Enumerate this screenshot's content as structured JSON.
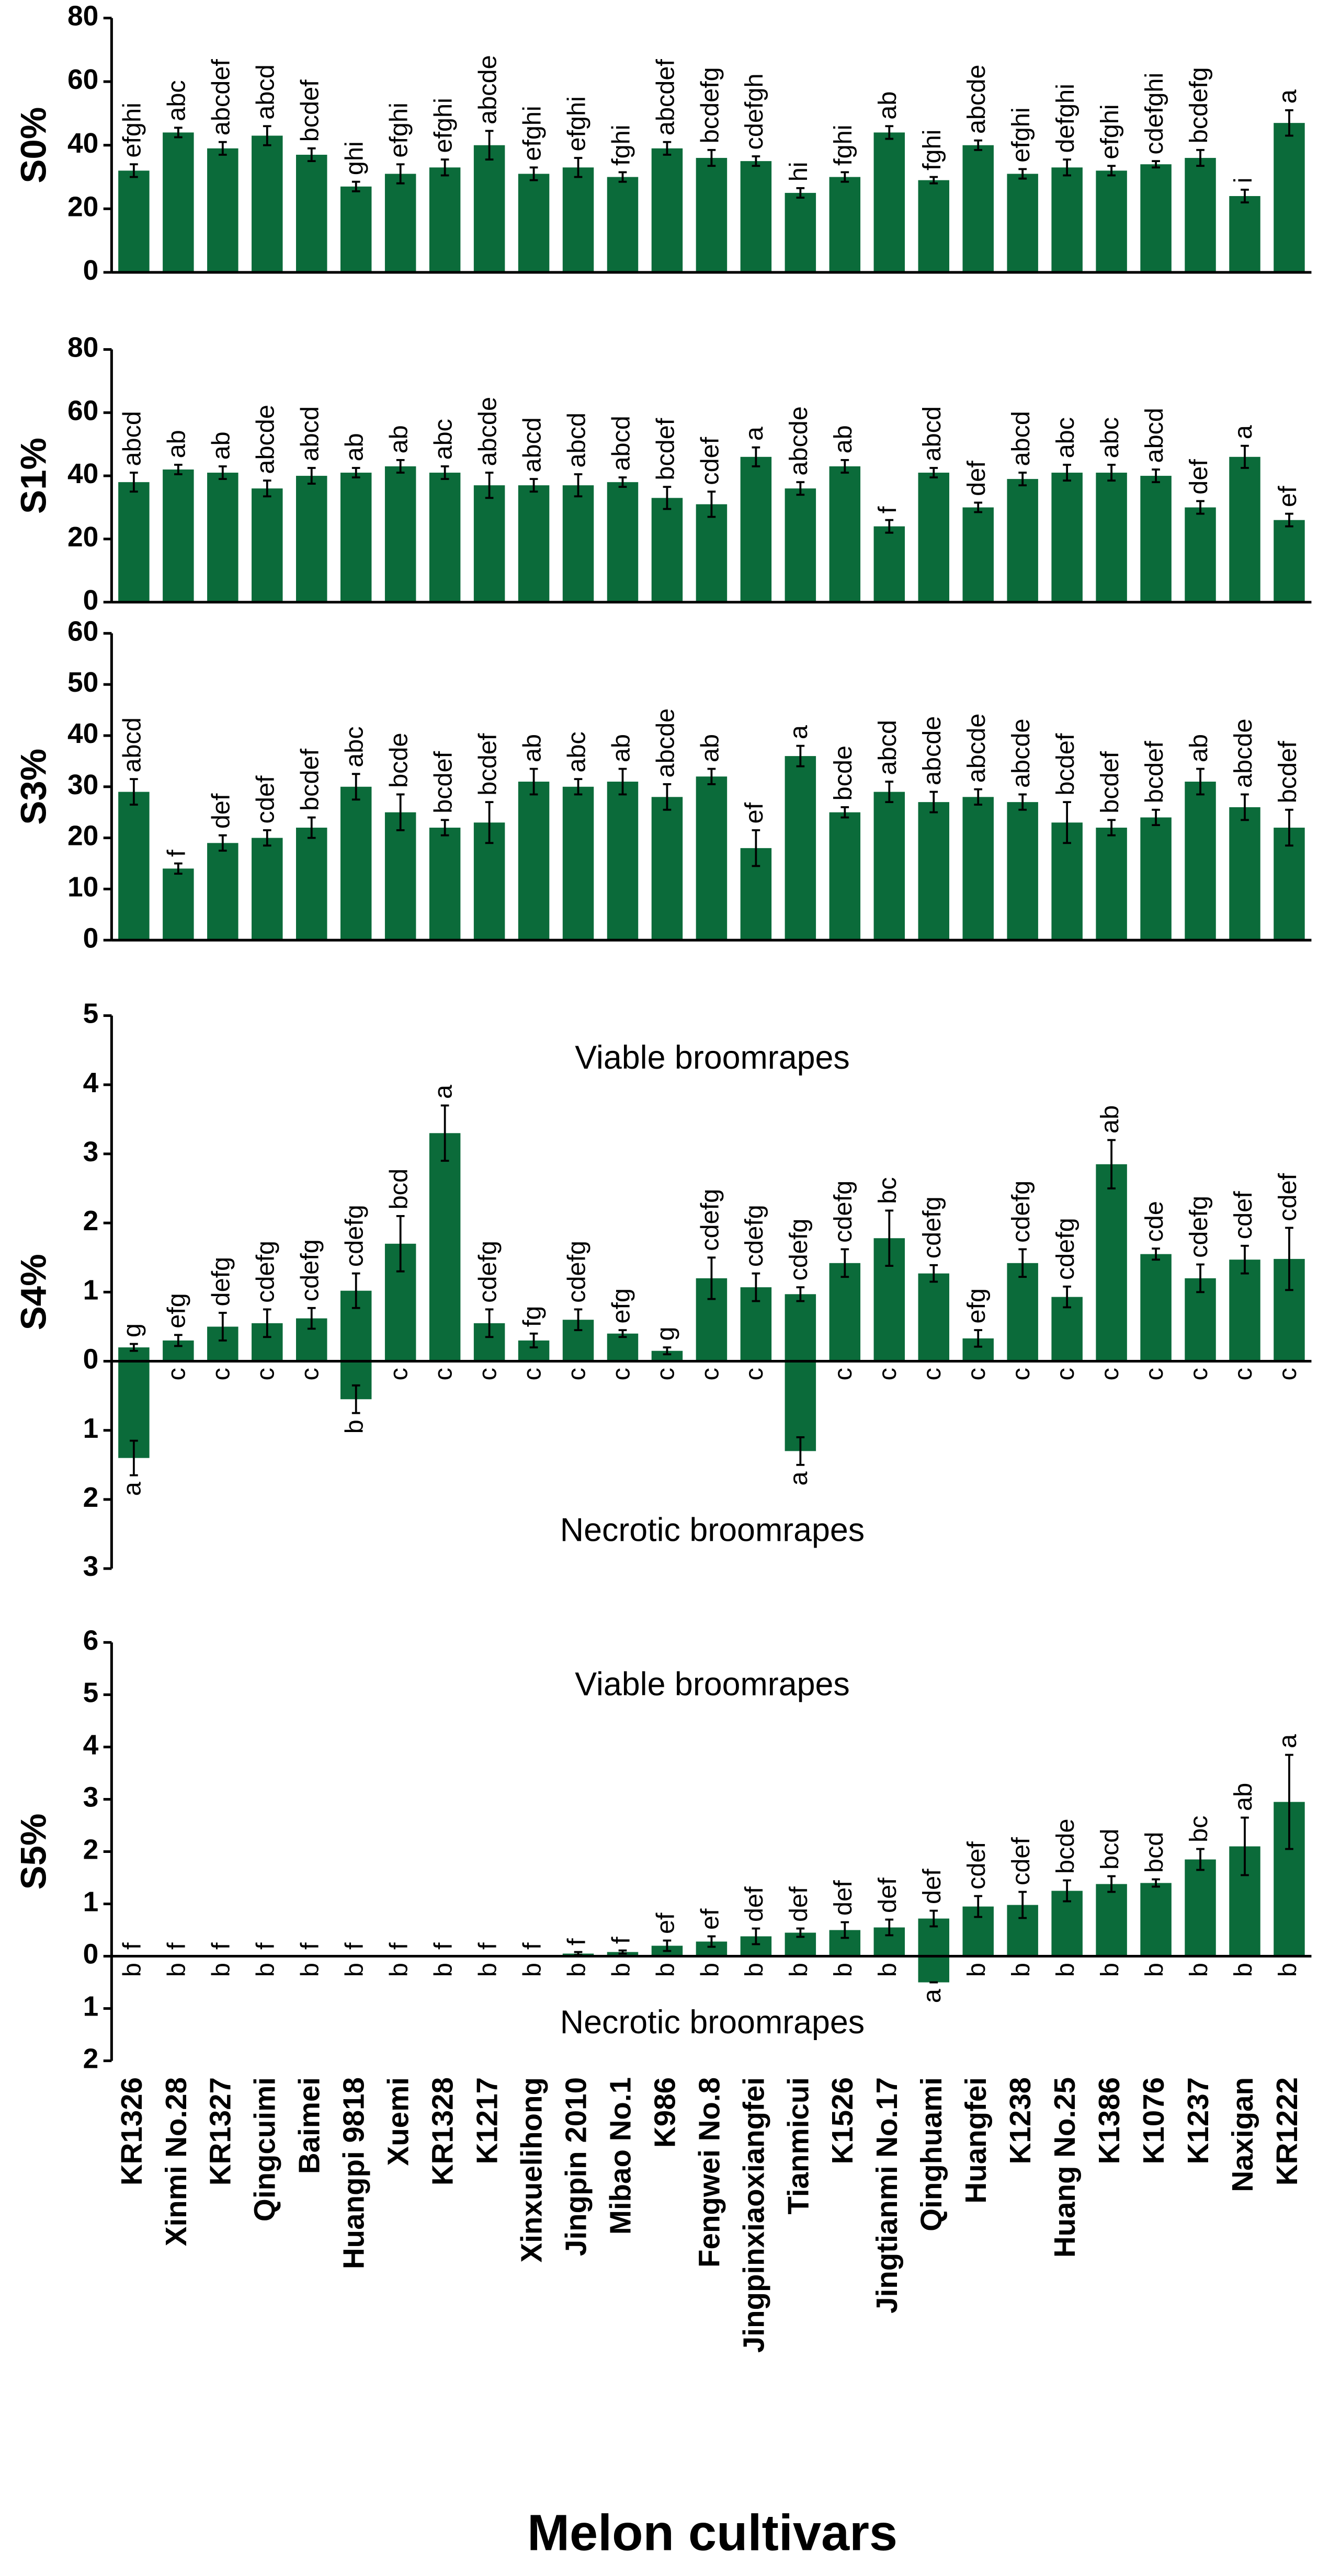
{
  "chart_data": [
    {
      "type": "bar",
      "ylabel": "S0%",
      "ylim": [
        0,
        80
      ],
      "yticks": [
        0,
        20,
        40,
        60,
        80
      ],
      "color": "#0b6b3a",
      "values": [
        32,
        44,
        39,
        43,
        37,
        27,
        31,
        33,
        40,
        31,
        33,
        30,
        39,
        36,
        35,
        25,
        30,
        44,
        29,
        40,
        31,
        33,
        32,
        34,
        36,
        24,
        47
      ],
      "errors": [
        2,
        1.5,
        2,
        3,
        2,
        1.5,
        3,
        2.5,
        4.5,
        2,
        3,
        1.5,
        2,
        2.5,
        1.5,
        1.5,
        1.5,
        2,
        1,
        1.5,
        1.5,
        2.5,
        1.5,
        1,
        2.5,
        2,
        4
      ],
      "letters": [
        "efghi",
        "abc",
        "abcdef",
        "abcd",
        "bcdef",
        "ghi",
        "efghi",
        "efghi",
        "abcde",
        "efghi",
        "efghi",
        "fghi",
        "abcdef",
        "bcdefg",
        "cdefgh",
        "hi",
        "fghi",
        "ab",
        "fghi",
        "abcde",
        "efghi",
        "defghi",
        "efghi",
        "cdefghi",
        "bcdefg",
        "i",
        "a"
      ]
    },
    {
      "type": "bar",
      "ylabel": "S1%",
      "ylim": [
        0,
        80
      ],
      "yticks": [
        0,
        20,
        40,
        60,
        80
      ],
      "color": "#0b6b3a",
      "values": [
        38,
        42,
        41,
        36,
        40,
        41,
        43,
        41,
        37,
        37,
        37,
        38,
        33,
        31,
        46,
        36,
        43,
        24,
        41,
        30,
        39,
        41,
        41,
        40,
        30,
        46,
        26
      ],
      "errors": [
        3,
        1.5,
        2,
        2.5,
        2.5,
        1.5,
        2,
        2,
        4,
        2,
        3.5,
        1.5,
        3.5,
        4,
        3,
        2,
        2,
        2,
        1.5,
        1.5,
        2,
        2.5,
        2.5,
        2,
        2,
        3.5,
        2
      ],
      "letters": [
        "abcd",
        "ab",
        "ab",
        "abcde",
        "abcd",
        "ab",
        "ab",
        "abc",
        "abcde",
        "abcd",
        "abcd",
        "abcd",
        "bcdef",
        "cdef",
        "a",
        "abcde",
        "ab",
        "f",
        "abcd",
        "def",
        "abcd",
        "abc",
        "abc",
        "abcd",
        "def",
        "a",
        "ef"
      ]
    },
    {
      "type": "bar",
      "ylabel": "S3%",
      "ylim": [
        0,
        60
      ],
      "yticks": [
        0,
        10,
        20,
        30,
        40,
        50,
        60
      ],
      "color": "#0b6b3a",
      "values": [
        29,
        14,
        19,
        20,
        22,
        30,
        25,
        22,
        23,
        31,
        30,
        31,
        28,
        32,
        18,
        36,
        25,
        29,
        27,
        28,
        27,
        23,
        22,
        24,
        31,
        26,
        22
      ],
      "errors": [
        2.5,
        1,
        1.5,
        1.5,
        2,
        2.5,
        3.5,
        1.5,
        4,
        2.5,
        1.5,
        2.5,
        2.5,
        1.5,
        3.5,
        2,
        1,
        2,
        2,
        1.5,
        1.5,
        4,
        1.5,
        1.5,
        2.5,
        2.5,
        3.5
      ],
      "letters": [
        "abcd",
        "f",
        "def",
        "cdef",
        "bcdef",
        "abc",
        "bcde",
        "bcdef",
        "bcdef",
        "ab",
        "abc",
        "ab",
        "abcde",
        "ab",
        "ef",
        "a",
        "bcde",
        "abcd",
        "abcde",
        "abcde",
        "abcde",
        "bcdef",
        "bcdef",
        "bcdef",
        "ab",
        "abcde",
        "bcdef"
      ]
    },
    {
      "type": "bar",
      "ylabel": "S4%",
      "ylim": [
        -3,
        5
      ],
      "yticks": [
        {
          "value": -3,
          "label": "3"
        },
        {
          "value": -2,
          "label": "2"
        },
        {
          "value": -1,
          "label": "1"
        },
        0,
        1,
        2,
        3,
        4,
        5
      ],
      "color": "#0b6b3a",
      "annotations": [
        "Viable broomrapes",
        "Necrotic broomrapes"
      ],
      "values": [
        0.2,
        0.3,
        0.5,
        0.55,
        0.62,
        1.02,
        1.7,
        3.3,
        0.55,
        0.3,
        0.6,
        0.4,
        0.15,
        1.2,
        1.07,
        0.97,
        1.42,
        1.78,
        1.27,
        0.33,
        1.42,
        0.93,
        2.85,
        1.55,
        1.2,
        1.47,
        1.48
      ],
      "errors": [
        0.05,
        0.08,
        0.2,
        0.2,
        0.15,
        0.25,
        0.4,
        0.4,
        0.2,
        0.1,
        0.15,
        0.05,
        0.05,
        0.3,
        0.2,
        0.1,
        0.2,
        0.4,
        0.12,
        0.12,
        0.2,
        0.15,
        0.35,
        0.08,
        0.2,
        0.2,
        0.45
      ],
      "letters": [
        "g",
        "efg",
        "defg",
        "cdefg",
        "cdefg",
        "cdefg",
        "bcd",
        "a",
        "cdefg",
        "fg",
        "cdefg",
        "efg",
        "g",
        "cdefg",
        "cdefg",
        "cdefg",
        "cdefg",
        "bc",
        "cdefg",
        "efg",
        "cdefg",
        "cdefg",
        "ab",
        "cde",
        "cdefg",
        "cdef",
        "cdef"
      ],
      "necrotic_values": [
        -1.4,
        0,
        0,
        0,
        0,
        -0.55,
        0,
        0,
        0,
        0,
        0,
        0,
        0,
        0,
        0,
        -1.3,
        0,
        0,
        0,
        0,
        0,
        0,
        0,
        0,
        0,
        0,
        0
      ],
      "necrotic_errors": [
        0.25,
        0,
        0,
        0,
        0,
        0.2,
        0,
        0,
        0,
        0,
        0,
        0,
        0,
        0,
        0,
        0.2,
        0,
        0,
        0,
        0,
        0,
        0,
        0,
        0,
        0,
        0,
        0
      ],
      "necrotic_letters": [
        "a",
        "c",
        "c",
        "c",
        "c",
        "b",
        "c",
        "c",
        "c",
        "c",
        "c",
        "c",
        "c",
        "c",
        "c",
        "a",
        "c",
        "c",
        "c",
        "c",
        "c",
        "c",
        "c",
        "c",
        "c",
        "c",
        "c"
      ]
    },
    {
      "type": "bar",
      "ylabel": "S5%",
      "ylim": [
        -2,
        6
      ],
      "yticks": [
        {
          "value": -2,
          "label": "2"
        },
        {
          "value": -1,
          "label": "1"
        },
        0,
        1,
        2,
        3,
        4,
        5,
        6
      ],
      "color": "#0b6b3a",
      "annotations": [
        "Viable broomrapes",
        "Necrotic broomrapes"
      ],
      "values": [
        0,
        0,
        0,
        0,
        0,
        0,
        0,
        0,
        0,
        0,
        0.05,
        0.08,
        0.2,
        0.28,
        0.38,
        0.45,
        0.5,
        0.55,
        0.72,
        0.95,
        0.98,
        1.25,
        1.38,
        1.4,
        1.85,
        2.1,
        2.95
      ],
      "errors": [
        0,
        0,
        0,
        0,
        0,
        0,
        0,
        0,
        0,
        0,
        0.03,
        0.03,
        0.1,
        0.1,
        0.15,
        0.08,
        0.15,
        0.15,
        0.15,
        0.2,
        0.25,
        0.2,
        0.15,
        0.07,
        0.2,
        0.55,
        0.9
      ],
      "letters": [
        "f",
        "f",
        "f",
        "f",
        "f",
        "f",
        "f",
        "f",
        "f",
        "f",
        "f",
        "f",
        "ef",
        "ef",
        "def",
        "def",
        "def",
        "def",
        "def",
        "cdef",
        "cdef",
        "bcde",
        "bcd",
        "bcd",
        "bc",
        "ab",
        "a"
      ],
      "necrotic_values": [
        0,
        0,
        0,
        0,
        0,
        0,
        0,
        0,
        0,
        0,
        0,
        0,
        0,
        0,
        0,
        0,
        0,
        0,
        -0.5,
        0,
        0,
        0,
        0,
        0,
        0,
        0,
        0
      ],
      "necrotic_errors": [
        0,
        0,
        0,
        0,
        0,
        0,
        0,
        0,
        0,
        0,
        0,
        0,
        0,
        0,
        0,
        0,
        0,
        0,
        0,
        0,
        0,
        0,
        0,
        0,
        0,
        0,
        0
      ],
      "necrotic_letters": [
        "b",
        "b",
        "b",
        "b",
        "b",
        "b",
        "b",
        "b",
        "b",
        "b",
        "b",
        "b",
        "b",
        "b",
        "b",
        "b",
        "b",
        "b",
        "a",
        "b",
        "b",
        "b",
        "b",
        "b",
        "b",
        "b",
        "b"
      ],
      "categories": [
        "KR1326",
        "Xinmi No.28",
        "KR1327",
        "Qingcuimi",
        "Baimei",
        "Huangpi 9818",
        "Xuemi",
        "KR1328",
        "K1217",
        "Xinxuelihong",
        "Jingpin 2010",
        "Mibao No.1",
        "K986",
        "Fengwei No.8",
        "Jingpinxiaoxiangfei",
        "Tianmicui",
        "K1526",
        "Jingtianmi No.17",
        "Qinghuami",
        "Huangfei",
        "K1238",
        "Huang No.25",
        "K1386",
        "K1076",
        "K1237",
        "Naxigan",
        "KR1222"
      ],
      "xlabel": "Melon cultivars"
    }
  ]
}
